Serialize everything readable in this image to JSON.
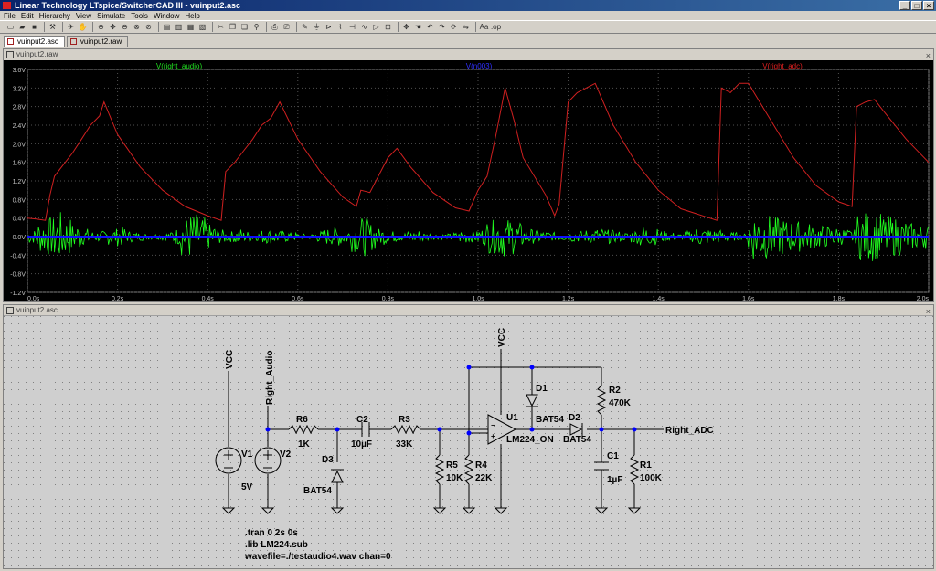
{
  "window": {
    "title": "Linear Technology LTspice/SwitcherCAD III - vuinput2.asc"
  },
  "menu": [
    "File",
    "Edit",
    "Hierarchy",
    "View",
    "Simulate",
    "Tools",
    "Window",
    "Help"
  ],
  "tabs": [
    {
      "label": "vuinput2.asc"
    },
    {
      "label": "vuinput2.raw"
    }
  ],
  "waveform_window": {
    "title": "vuinput2.raw",
    "traces": [
      {
        "label": "V(right_audio)",
        "color": "#00e000"
      },
      {
        "label": "V(n003)",
        "color": "#2020ff"
      },
      {
        "label": "V(right_adc)",
        "color": "#e02020"
      }
    ]
  },
  "schematic_window": {
    "title": "vuinput2.asc",
    "labels": {
      "vcc1": "VCC",
      "vcc2": "VCC",
      "right_audio": "Right_Audio",
      "right_adc": "Right_ADC",
      "v1": "V1",
      "v1_val": "5V",
      "v2": "V2",
      "r6": "R6",
      "r6_val": "1K",
      "c2": "C2",
      "c2_val": "10µF",
      "r3": "R3",
      "r3_val": "33K",
      "d3": "D3",
      "d3_val": "BAT54",
      "r5": "R5",
      "r5_val": "10K",
      "r4": "R4",
      "r4_val": "22K",
      "u1": "U1",
      "u1_val": "LM224_ON",
      "d1": "D1",
      "d1_val": "BAT54",
      "d2": "D2",
      "d2_val": "BAT54",
      "r2": "R2",
      "r2_val": "470K",
      "c1": "C1",
      "c1_val": "1µF",
      "r1": "R1",
      "r1_val": "100K",
      "dir1": ".tran 0 2s 0s",
      "dir2": ".lib LM224.sub",
      "dir3": "wavefile=./testaudio4.wav chan=0"
    }
  },
  "chart_data": {
    "type": "line",
    "title": "",
    "xlabel": "",
    "ylabel": "",
    "xlim": [
      0,
      2.0
    ],
    "ylim": [
      -1.2,
      3.6
    ],
    "x_ticks": [
      "0.0s",
      "0.2s",
      "0.4s",
      "0.6s",
      "0.8s",
      "1.0s",
      "1.2s",
      "1.4s",
      "1.6s",
      "1.8s",
      "2.0s"
    ],
    "y_ticks": [
      "3.6V",
      "3.2V",
      "2.8V",
      "2.4V",
      "2.0V",
      "1.6V",
      "1.2V",
      "0.8V",
      "0.4V",
      "0.0V",
      "-0.4V",
      "-0.8V",
      "-1.2V"
    ],
    "grid": true,
    "series": [
      {
        "name": "V(right_adc)",
        "color": "#d02020",
        "points": [
          [
            0.0,
            0.4
          ],
          [
            0.02,
            0.38
          ],
          [
            0.04,
            0.35
          ],
          [
            0.05,
            0.9
          ],
          [
            0.06,
            1.3
          ],
          [
            0.08,
            1.55
          ],
          [
            0.1,
            1.8
          ],
          [
            0.12,
            2.1
          ],
          [
            0.14,
            2.4
          ],
          [
            0.16,
            2.6
          ],
          [
            0.17,
            2.9
          ],
          [
            0.2,
            2.2
          ],
          [
            0.25,
            1.5
          ],
          [
            0.3,
            1.0
          ],
          [
            0.35,
            0.65
          ],
          [
            0.4,
            0.45
          ],
          [
            0.43,
            0.35
          ],
          [
            0.44,
            1.4
          ],
          [
            0.46,
            1.6
          ],
          [
            0.48,
            1.85
          ],
          [
            0.5,
            2.1
          ],
          [
            0.52,
            2.4
          ],
          [
            0.54,
            2.55
          ],
          [
            0.56,
            2.9
          ],
          [
            0.6,
            2.1
          ],
          [
            0.65,
            1.4
          ],
          [
            0.7,
            0.85
          ],
          [
            0.73,
            0.65
          ],
          [
            0.74,
            1.0
          ],
          [
            0.76,
            0.95
          ],
          [
            0.8,
            1.7
          ],
          [
            0.82,
            1.9
          ],
          [
            0.85,
            1.5
          ],
          [
            0.9,
            0.95
          ],
          [
            0.95,
            0.62
          ],
          [
            0.98,
            0.55
          ],
          [
            1.0,
            1.0
          ],
          [
            1.02,
            1.3
          ],
          [
            1.04,
            2.2
          ],
          [
            1.06,
            3.2
          ],
          [
            1.08,
            2.5
          ],
          [
            1.1,
            1.7
          ],
          [
            1.15,
            0.9
          ],
          [
            1.17,
            0.45
          ],
          [
            1.18,
            0.7
          ],
          [
            1.2,
            2.9
          ],
          [
            1.22,
            3.1
          ],
          [
            1.26,
            3.3
          ],
          [
            1.3,
            2.4
          ],
          [
            1.35,
            1.6
          ],
          [
            1.4,
            1.0
          ],
          [
            1.45,
            0.6
          ],
          [
            1.53,
            0.35
          ],
          [
            1.54,
            3.2
          ],
          [
            1.56,
            3.1
          ],
          [
            1.58,
            3.3
          ],
          [
            1.6,
            3.3
          ],
          [
            1.65,
            2.5
          ],
          [
            1.7,
            1.7
          ],
          [
            1.75,
            1.1
          ],
          [
            1.8,
            0.75
          ],
          [
            1.83,
            0.65
          ],
          [
            1.84,
            2.8
          ],
          [
            1.86,
            2.9
          ],
          [
            1.88,
            2.95
          ],
          [
            1.9,
            2.7
          ],
          [
            1.95,
            2.1
          ],
          [
            2.0,
            1.6
          ]
        ]
      },
      {
        "name": "V(right_audio)",
        "color": "#20ff20",
        "points": [
          [
            0.0,
            0.0
          ],
          [
            0.2,
            0.0
          ],
          [
            0.4,
            0.0
          ],
          [
            0.6,
            0.0
          ],
          [
            0.8,
            0.0
          ],
          [
            1.0,
            0.0
          ],
          [
            1.2,
            0.0
          ],
          [
            1.4,
            0.0
          ],
          [
            1.6,
            0.0
          ],
          [
            1.8,
            0.0
          ],
          [
            2.0,
            0.0
          ]
        ]
      },
      {
        "name": "V(n003)",
        "color": "#1010ff",
        "points": [
          [
            0.0,
            0.0
          ],
          [
            2.0,
            0.0
          ]
        ]
      }
    ],
    "audio_envelope": [
      0.25,
      0.6,
      0.7,
      0.9,
      0.7,
      0.5,
      0.3,
      0.2,
      0.2,
      0.3,
      0.35,
      0.2,
      0.15,
      0.1,
      0.1,
      0.15,
      0.3,
      0.7,
      0.85,
      0.7,
      0.45,
      0.25,
      0.2,
      0.3,
      0.2,
      0.15,
      0.25,
      0.25,
      0.2,
      0.15,
      0.1,
      0.1,
      0.2,
      0.3,
      0.35,
      0.3,
      0.55,
      0.7,
      0.5,
      0.3,
      0.2,
      0.15,
      0.2,
      0.25,
      0.15,
      0.1,
      0.1,
      0.15,
      0.25,
      0.2,
      0.3,
      0.6,
      0.75,
      0.65,
      0.5,
      0.3,
      0.25,
      0.2,
      0.15,
      0.15,
      0.2,
      0.2,
      0.25,
      0.3,
      0.25,
      0.2,
      0.15,
      0.25,
      0.4,
      0.3,
      0.2,
      0.15,
      0.1,
      0.2,
      0.35,
      0.3,
      0.25,
      0.2,
      0.15,
      0.1,
      0.9,
      0.95,
      0.8,
      0.7,
      0.6,
      0.55,
      0.5,
      0.45,
      0.4,
      0.35,
      0.3,
      0.25,
      0.85,
      0.9,
      0.85,
      0.75,
      0.7,
      0.6,
      0.5,
      0.45
    ]
  }
}
